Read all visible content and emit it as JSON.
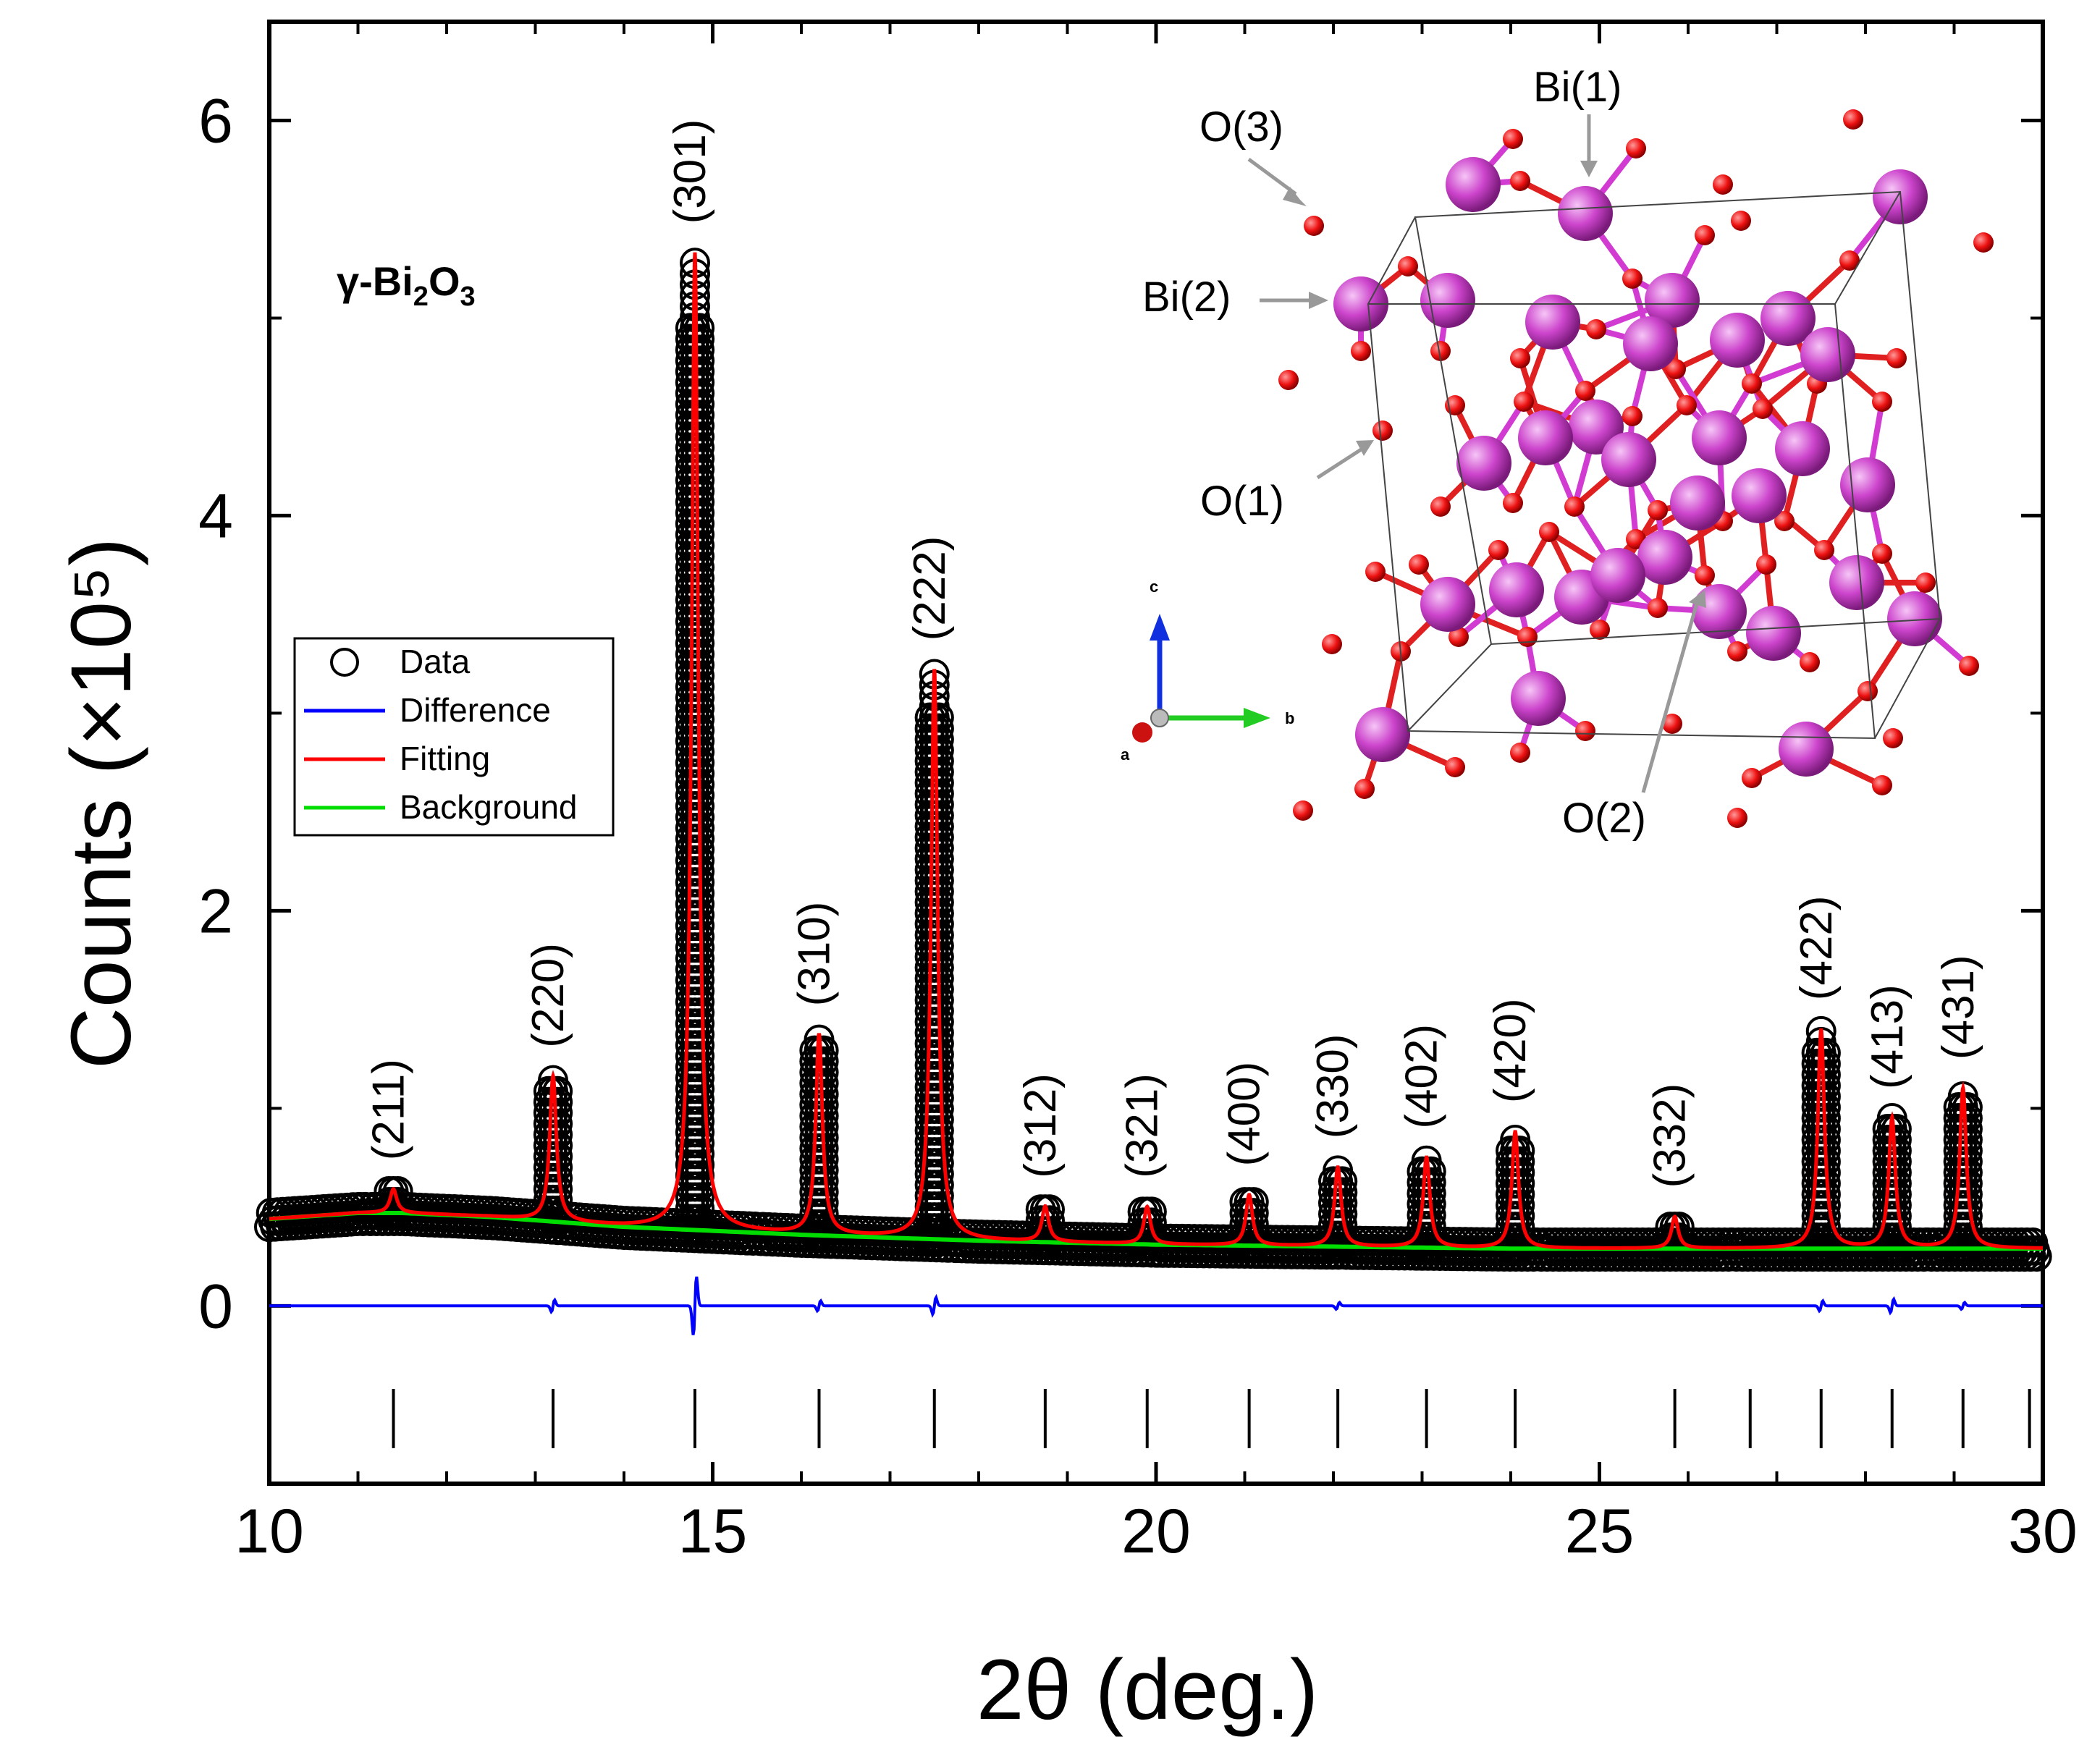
{
  "chart_data": {
    "type": "line",
    "title": "",
    "phase_label": {
      "prefix": "γ-Bi",
      "sub1": "2",
      "mid": "O",
      "sub2": "3"
    },
    "xlabel": "2θ (deg.)",
    "ylabel": "Counts (×10⁵)",
    "xlim": [
      10,
      30
    ],
    "ylim": [
      -0.9,
      6.5
    ],
    "x_ticks": [
      10,
      15,
      20,
      25,
      30
    ],
    "x_tick_labels": [
      "10",
      "15",
      "20",
      "25",
      "30"
    ],
    "y_ticks": [
      0,
      2,
      4,
      6
    ],
    "y_tick_labels": [
      "0",
      "2",
      "4",
      "6"
    ],
    "colors": {
      "data": "#000000",
      "difference": "#0000ff",
      "fitting": "#ff0000",
      "background": "#00dd00",
      "bi": "#cc44cc",
      "oxygen": "#ee1111"
    },
    "legend": [
      {
        "key": "data",
        "label": "Data"
      },
      {
        "key": "difference",
        "label": "Difference"
      },
      {
        "key": "fitting",
        "label": "Fitting"
      },
      {
        "key": "background",
        "label": "Background"
      }
    ],
    "background_curve": {
      "x": [
        10,
        11,
        11.5,
        12.5,
        14,
        16,
        18,
        20,
        22,
        24,
        26,
        28,
        30
      ],
      "y": [
        0.44,
        0.47,
        0.47,
        0.45,
        0.4,
        0.36,
        0.33,
        0.31,
        0.3,
        0.29,
        0.29,
        0.29,
        0.29
      ]
    },
    "peaks": [
      {
        "label": "(211)",
        "x": 11.4,
        "intensity": 0.59
      },
      {
        "label": "(220)",
        "x": 13.2,
        "intensity": 1.16
      },
      {
        "label": "(301)",
        "x": 14.8,
        "intensity": 5.33
      },
      {
        "label": "(310)",
        "x": 16.2,
        "intensity": 1.37
      },
      {
        "label": "(222)",
        "x": 17.5,
        "intensity": 3.22
      },
      {
        "label": "(312)",
        "x": 18.75,
        "intensity": 0.5
      },
      {
        "label": "(321)",
        "x": 19.9,
        "intensity": 0.5
      },
      {
        "label": "(400)",
        "x": 21.05,
        "intensity": 0.56
      },
      {
        "label": "(330)",
        "x": 22.05,
        "intensity": 0.7
      },
      {
        "label": "(402)",
        "x": 23.05,
        "intensity": 0.75
      },
      {
        "label": "(420)",
        "x": 24.05,
        "intensity": 0.88
      },
      {
        "label": "(332)",
        "x": 25.85,
        "intensity": 0.45
      },
      {
        "label": "(422)",
        "x": 27.5,
        "intensity": 1.4
      },
      {
        "label": "(413)",
        "x": 28.3,
        "intensity": 0.95
      },
      {
        "label": "(431)",
        "x": 29.1,
        "intensity": 1.1
      }
    ],
    "bragg_positions": [
      11.4,
      13.2,
      14.8,
      16.2,
      17.5,
      18.75,
      19.9,
      21.05,
      22.05,
      23.05,
      24.05,
      25.85,
      26.7,
      27.5,
      28.3,
      29.1,
      29.85
    ],
    "difference_features": [
      {
        "x": 13.2,
        "amp": 0.07
      },
      {
        "x": 14.8,
        "amp": 0.35
      },
      {
        "x": 16.2,
        "amp": 0.06
      },
      {
        "x": 17.5,
        "amp": 0.1
      },
      {
        "x": 22.05,
        "amp": 0.04
      },
      {
        "x": 27.5,
        "amp": 0.06
      },
      {
        "x": 28.3,
        "amp": 0.08
      },
      {
        "x": 29.1,
        "amp": 0.04
      }
    ]
  },
  "structure_inset": {
    "labels": [
      "Bi(1)",
      "O(3)",
      "Bi(2)",
      "O(1)",
      "O(2)"
    ],
    "axes": {
      "c": "c",
      "a": "a",
      "b": "b"
    }
  }
}
